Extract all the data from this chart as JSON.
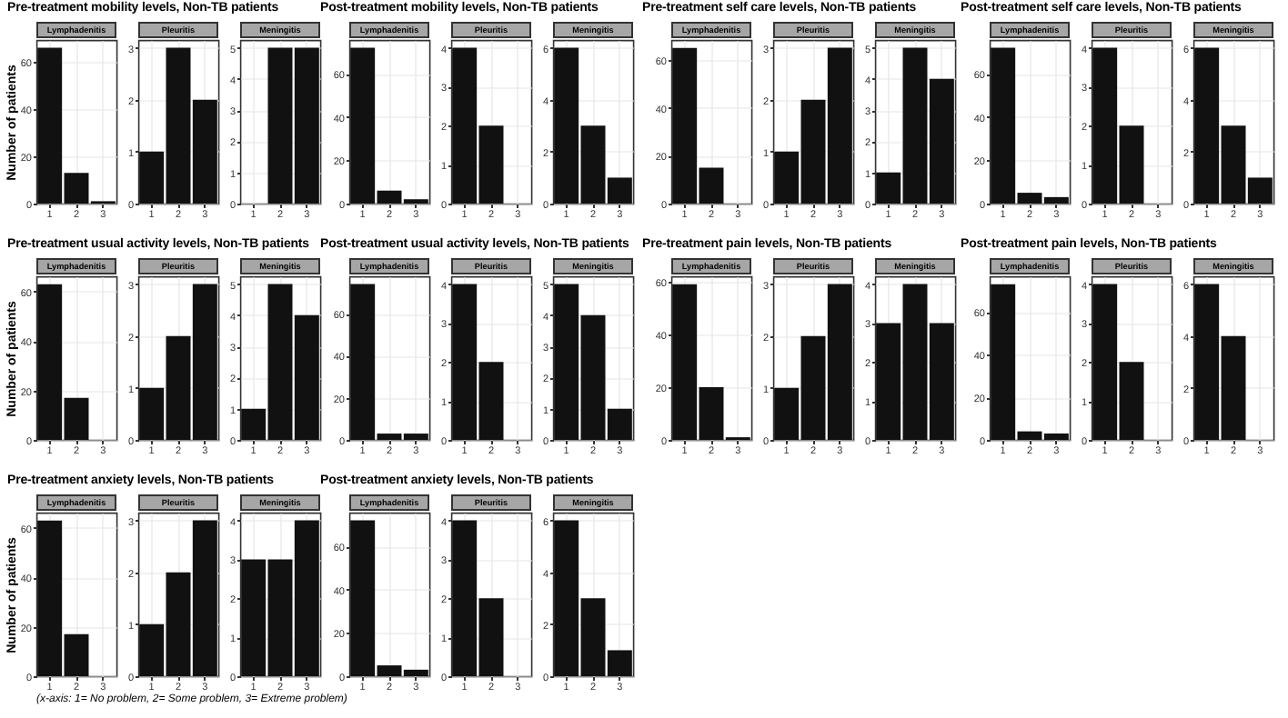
{
  "chart_data": [
    {
      "type": "bar",
      "title": "Pre-treatment mobility levels, Non-TB patients",
      "subtitle": "Lymphadenitis",
      "ylabel": "Number of patients",
      "categories": [
        "1",
        "2",
        "3"
      ],
      "values": [
        66,
        13,
        1
      ],
      "color": "#111111",
      "ylim": [
        0,
        69.3
      ],
      "yticks": [
        0,
        20,
        40,
        60
      ],
      "grid": true
    },
    {
      "type": "bar",
      "subtitle": "Pleuritis",
      "categories": [
        "1",
        "2",
        "3"
      ],
      "values": [
        1,
        3,
        2
      ],
      "color": "#111111",
      "ylim": [
        0,
        3.15
      ],
      "yticks": [
        0,
        1,
        2,
        3
      ],
      "grid": true
    },
    {
      "type": "bar",
      "subtitle": "Meningitis",
      "categories": [
        "1",
        "2",
        "3"
      ],
      "values": [
        0,
        5,
        5
      ],
      "color": "#111111",
      "ylim": [
        0,
        5.25
      ],
      "yticks": [
        0,
        1,
        2,
        3,
        4,
        5
      ],
      "grid": true
    },
    {
      "type": "bar",
      "title": "Post-treatment mobility levels, Non-TB patients",
      "subtitle": "Lymphadenitis",
      "categories": [
        "1",
        "2",
        "3"
      ],
      "values": [
        72,
        6,
        2
      ],
      "color": "#111111",
      "ylim": [
        0,
        75.6
      ],
      "yticks": [
        0,
        20,
        40,
        60
      ],
      "grid": true
    },
    {
      "type": "bar",
      "subtitle": "Pleuritis",
      "categories": [
        "1",
        "2",
        "3"
      ],
      "values": [
        4,
        2,
        0
      ],
      "color": "#111111",
      "ylim": [
        0,
        4.2
      ],
      "yticks": [
        0,
        1,
        2,
        3,
        4
      ],
      "grid": true
    },
    {
      "type": "bar",
      "subtitle": "Meningitis",
      "categories": [
        "1",
        "2",
        "3"
      ],
      "values": [
        6,
        3,
        1
      ],
      "color": "#111111",
      "ylim": [
        0,
        6.3
      ],
      "yticks": [
        0,
        2,
        4,
        6
      ],
      "grid": true
    },
    {
      "type": "bar",
      "title": "Pre-treatment self care levels, Non-TB patients",
      "subtitle": "Lymphadenitis",
      "categories": [
        "1",
        "2",
        "3"
      ],
      "values": [
        65,
        15,
        0
      ],
      "color": "#111111",
      "ylim": [
        0,
        68.3
      ],
      "yticks": [
        0,
        20,
        40,
        60
      ],
      "grid": true
    },
    {
      "type": "bar",
      "subtitle": "Pleuritis",
      "categories": [
        "1",
        "2",
        "3"
      ],
      "values": [
        1,
        2,
        3
      ],
      "color": "#111111",
      "ylim": [
        0,
        3.15
      ],
      "yticks": [
        0,
        1,
        2,
        3
      ],
      "grid": true
    },
    {
      "type": "bar",
      "subtitle": "Meningitis",
      "categories": [
        "1",
        "2",
        "3"
      ],
      "values": [
        1,
        5,
        4
      ],
      "color": "#111111",
      "ylim": [
        0,
        5.25
      ],
      "yticks": [
        0,
        1,
        2,
        3,
        4,
        5
      ],
      "grid": true
    },
    {
      "type": "bar",
      "title": "Post-treatment self care levels, Non-TB patients",
      "subtitle": "Lymphadenitis",
      "categories": [
        "1",
        "2",
        "3"
      ],
      "values": [
        72,
        5,
        3
      ],
      "color": "#111111",
      "ylim": [
        0,
        75.6
      ],
      "yticks": [
        0,
        20,
        40,
        60
      ],
      "grid": true
    },
    {
      "type": "bar",
      "subtitle": "Pleuritis",
      "categories": [
        "1",
        "2",
        "3"
      ],
      "values": [
        4,
        2,
        0
      ],
      "color": "#111111",
      "ylim": [
        0,
        4.2
      ],
      "yticks": [
        0,
        1,
        2,
        3,
        4
      ],
      "grid": true
    },
    {
      "type": "bar",
      "subtitle": "Meningitis",
      "categories": [
        "1",
        "2",
        "3"
      ],
      "values": [
        6,
        3,
        1
      ],
      "color": "#111111",
      "ylim": [
        0,
        6.3
      ],
      "yticks": [
        0,
        2,
        4,
        6
      ],
      "grid": true
    },
    {
      "type": "bar",
      "title": "Pre-treatment usual activity levels, Non-TB patients",
      "subtitle": "Lymphadenitis",
      "ylabel": "Number of patients",
      "categories": [
        "1",
        "2",
        "3"
      ],
      "values": [
        63,
        17,
        0
      ],
      "color": "#111111",
      "ylim": [
        0,
        66.2
      ],
      "yticks": [
        0,
        20,
        40,
        60
      ],
      "grid": true
    },
    {
      "type": "bar",
      "subtitle": "Pleuritis",
      "categories": [
        "1",
        "2",
        "3"
      ],
      "values": [
        1,
        2,
        3
      ],
      "color": "#111111",
      "ylim": [
        0,
        3.15
      ],
      "yticks": [
        0,
        1,
        2,
        3
      ],
      "grid": true
    },
    {
      "type": "bar",
      "subtitle": "Meningitis",
      "categories": [
        "1",
        "2",
        "3"
      ],
      "values": [
        1,
        5,
        4
      ],
      "color": "#111111",
      "ylim": [
        0,
        5.25
      ],
      "yticks": [
        0,
        1,
        2,
        3,
        4,
        5
      ],
      "grid": true
    },
    {
      "type": "bar",
      "title": "Post-treatment usual activity levels, Non-TB patients",
      "subtitle": "Lymphadenitis",
      "categories": [
        "1",
        "2",
        "3"
      ],
      "values": [
        74,
        3,
        3
      ],
      "color": "#111111",
      "ylim": [
        0,
        77.7
      ],
      "yticks": [
        0,
        20,
        40,
        60
      ],
      "grid": true
    },
    {
      "type": "bar",
      "subtitle": "Pleuritis",
      "categories": [
        "1",
        "2",
        "3"
      ],
      "values": [
        4,
        2,
        0
      ],
      "color": "#111111",
      "ylim": [
        0,
        4.2
      ],
      "yticks": [
        0,
        1,
        2,
        3,
        4
      ],
      "grid": true
    },
    {
      "type": "bar",
      "subtitle": "Meningitis",
      "categories": [
        "1",
        "2",
        "3"
      ],
      "values": [
        5,
        4,
        1
      ],
      "color": "#111111",
      "ylim": [
        0,
        5.25
      ],
      "yticks": [
        0,
        1,
        2,
        3,
        4,
        5
      ],
      "grid": true
    },
    {
      "type": "bar",
      "title": "Pre-treatment pain levels, Non-TB patients",
      "subtitle": "Lymphadenitis",
      "categories": [
        "1",
        "2",
        "3"
      ],
      "values": [
        59,
        20,
        1
      ],
      "color": "#111111",
      "ylim": [
        0,
        62
      ],
      "yticks": [
        0,
        20,
        40,
        60
      ],
      "grid": true
    },
    {
      "type": "bar",
      "subtitle": "Pleuritis",
      "categories": [
        "1",
        "2",
        "3"
      ],
      "values": [
        1,
        2,
        3
      ],
      "color": "#111111",
      "ylim": [
        0,
        3.15
      ],
      "yticks": [
        0,
        1,
        2,
        3
      ],
      "grid": true
    },
    {
      "type": "bar",
      "subtitle": "Meningitis",
      "categories": [
        "1",
        "2",
        "3"
      ],
      "values": [
        3,
        4,
        3
      ],
      "color": "#111111",
      "ylim": [
        0,
        4.2
      ],
      "yticks": [
        0,
        1,
        2,
        3,
        4
      ],
      "grid": true
    },
    {
      "type": "bar",
      "title": "Post-treatment pain levels, Non-TB patients",
      "subtitle": "Lymphadenitis",
      "categories": [
        "1",
        "2",
        "3"
      ],
      "values": [
        73,
        4,
        3
      ],
      "color": "#111111",
      "ylim": [
        0,
        76.7
      ],
      "yticks": [
        0,
        20,
        40,
        60
      ],
      "grid": true
    },
    {
      "type": "bar",
      "subtitle": "Pleuritis",
      "categories": [
        "1",
        "2",
        "3"
      ],
      "values": [
        4,
        2,
        0
      ],
      "color": "#111111",
      "ylim": [
        0,
        4.2
      ],
      "yticks": [
        0,
        1,
        2,
        3,
        4
      ],
      "grid": true
    },
    {
      "type": "bar",
      "subtitle": "Meningitis",
      "categories": [
        "1",
        "2",
        "3"
      ],
      "values": [
        6,
        4,
        0
      ],
      "color": "#111111",
      "ylim": [
        0,
        6.3
      ],
      "yticks": [
        0,
        2,
        4,
        6
      ],
      "grid": true
    },
    {
      "type": "bar",
      "title": "Pre-treatment anxiety levels, Non-TB patients",
      "subtitle": "Lymphadenitis",
      "ylabel": "Number of patients",
      "annotations": [
        "(x-axis: 1= No problem, 2= Some problem, 3= Extreme problem)"
      ],
      "categories": [
        "1",
        "2",
        "3"
      ],
      "values": [
        63,
        17,
        0
      ],
      "color": "#111111",
      "ylim": [
        0,
        66.2
      ],
      "yticks": [
        0,
        20,
        40,
        60
      ],
      "grid": true
    },
    {
      "type": "bar",
      "subtitle": "Pleuritis",
      "categories": [
        "1",
        "2",
        "3"
      ],
      "values": [
        1,
        2,
        3
      ],
      "color": "#111111",
      "ylim": [
        0,
        3.15
      ],
      "yticks": [
        0,
        1,
        2,
        3
      ],
      "grid": true
    },
    {
      "type": "bar",
      "subtitle": "Meningitis",
      "categories": [
        "1",
        "2",
        "3"
      ],
      "values": [
        3,
        3,
        4
      ],
      "color": "#111111",
      "ylim": [
        0,
        4.2
      ],
      "yticks": [
        0,
        1,
        2,
        3,
        4
      ],
      "grid": true
    },
    {
      "type": "bar",
      "title": "Post-treatment anxiety levels, Non-TB patients",
      "subtitle": "Lymphadenitis",
      "categories": [
        "1",
        "2",
        "3"
      ],
      "values": [
        72,
        5,
        3
      ],
      "color": "#111111",
      "ylim": [
        0,
        75.6
      ],
      "yticks": [
        0,
        20,
        40,
        60
      ],
      "grid": true
    },
    {
      "type": "bar",
      "subtitle": "Pleuritis",
      "categories": [
        "1",
        "2",
        "3"
      ],
      "values": [
        4,
        2,
        0
      ],
      "color": "#111111",
      "ylim": [
        0,
        4.2
      ],
      "yticks": [
        0,
        1,
        2,
        3,
        4
      ],
      "grid": true
    },
    {
      "type": "bar",
      "subtitle": "Meningitis",
      "categories": [
        "1",
        "2",
        "3"
      ],
      "values": [
        6,
        3,
        1
      ],
      "color": "#111111",
      "ylim": [
        0,
        6.3
      ],
      "yticks": [
        0,
        2,
        4,
        6
      ],
      "grid": true
    }
  ]
}
